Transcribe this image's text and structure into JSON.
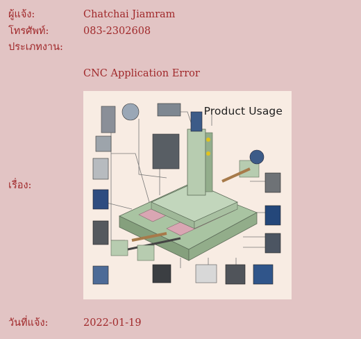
{
  "fields": {
    "reporter": {
      "label": "ผู้แจ้ง:",
      "value": "Chatchai Jiamram"
    },
    "phone": {
      "label": "โทรศัพท์:",
      "value": "083-2302608"
    },
    "job_type": {
      "label": "ประเภทงาน:",
      "value": ""
    },
    "subject_title": "CNC Application Error",
    "subject": {
      "label": "เรื่อง:"
    },
    "report_date": {
      "label": "วันที่แจ้ง:",
      "value": "2022-01-19"
    }
  },
  "attachment": {
    "title": "Product Usage",
    "icon": "cnc-machine-diagram"
  }
}
